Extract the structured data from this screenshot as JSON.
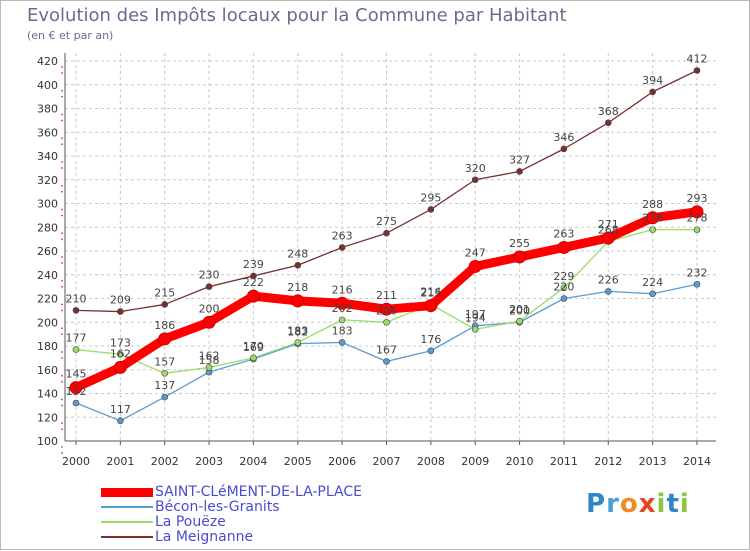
{
  "title": "Evolution des Impôts locaux pour la Commune par Habitant",
  "subtitle": "(en € et par an)",
  "brand": {
    "letters": [
      {
        "ch": "P",
        "color": "#2f86c9"
      },
      {
        "ch": "r",
        "color": "#4aa0d6"
      },
      {
        "ch": "o",
        "color": "#f08a24"
      },
      {
        "ch": "x",
        "color": "#e8451f"
      },
      {
        "ch": "i",
        "color": "#8cc63f"
      },
      {
        "ch": "t",
        "color": "#2f86c9"
      },
      {
        "ch": "i",
        "color": "#8cc63f"
      }
    ]
  },
  "chart_data": {
    "type": "line",
    "x": [
      2000,
      2001,
      2002,
      2003,
      2004,
      2005,
      2006,
      2007,
      2008,
      2009,
      2010,
      2011,
      2012,
      2013,
      2014
    ],
    "ylim": [
      100,
      420
    ],
    "yticks": [
      100,
      120,
      140,
      160,
      180,
      200,
      220,
      240,
      260,
      280,
      300,
      320,
      340,
      360,
      380,
      400,
      420
    ],
    "grid": true,
    "legend": "bottom-left",
    "series": [
      {
        "name": "SAINT-CLéMENT-DE-LA-PLACE",
        "color": "#ff0000",
        "emphasis": true,
        "values": [
          145,
          162,
          186,
          200,
          222,
          218,
          216,
          211,
          214,
          247,
          255,
          263,
          271,
          288,
          293
        ]
      },
      {
        "name": "Bécon-les-Granits",
        "color": "#5b9bd5",
        "values": [
          132,
          117,
          137,
          158,
          169,
          182,
          183,
          167,
          176,
          197,
          200,
          220,
          226,
          224,
          232
        ]
      },
      {
        "name": "La Pouëze",
        "color": "#99dd66",
        "values": [
          177,
          173,
          157,
          162,
          170,
          183,
          202,
          200,
          215,
          194,
          201,
          229,
          268,
          278,
          278
        ]
      },
      {
        "name": "La Meignanne",
        "color": "#7a2f2f",
        "values": [
          210,
          209,
          215,
          230,
          239,
          248,
          263,
          275,
          295,
          320,
          327,
          346,
          368,
          394,
          412
        ]
      }
    ]
  }
}
